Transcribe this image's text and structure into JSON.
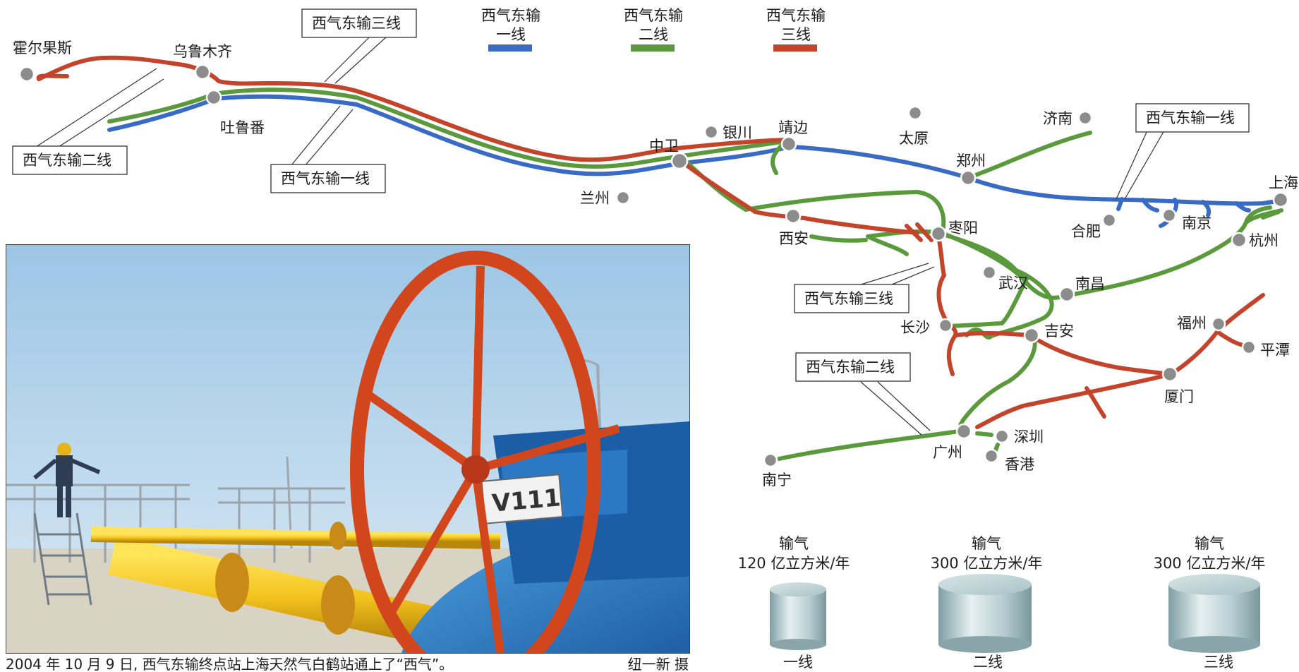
{
  "legend": [
    {
      "line1": "西气东输",
      "line2": "一线",
      "color": "#3a6bc4"
    },
    {
      "line1": "西气东输",
      "line2": "二线",
      "color": "#5a9a3c"
    },
    {
      "line1": "西气东输",
      "line2": "三线",
      "color": "#c4432b"
    }
  ],
  "cities": {
    "huoerguosi": "霍尔果斯",
    "wulumuqi": "乌鲁木齐",
    "tulufan": "吐鲁番",
    "zhongwei": "中卫",
    "yinchuan": "银川",
    "jingbian": "靖边",
    "lanzhou": "兰州",
    "taiyuan": "太原",
    "jinan": "济南",
    "zhengzhou": "郑州",
    "shanghai": "上海",
    "hefei": "合肥",
    "nanjing": "南京",
    "hangzhou": "杭州",
    "xian": "西安",
    "zaoyang": "枣阳",
    "wuhan": "武汉",
    "nanchang": "南昌",
    "changsha": "长沙",
    "jian": "吉安",
    "fuzhou": "福州",
    "pingtan": "平潭",
    "xiamen": "厦门",
    "guangzhou": "广州",
    "shenzhen": "深圳",
    "xianggang": "香港",
    "nanning": "南宁"
  },
  "callouts": {
    "line3_top": "西气东输三线",
    "line2_left": "西气东输二线",
    "line1_mid": "西气东输一线",
    "line1_east": "西气东输一线",
    "line3_mid": "西气东输三线",
    "line2_south": "西气东输二线"
  },
  "capacity": [
    {
      "label": "输气",
      "amount": "120 亿立方米/年",
      "name": "一线",
      "value": 120
    },
    {
      "label": "输气",
      "amount": "300 亿立方米/年",
      "name": "二线",
      "value": 300
    },
    {
      "label": "输气",
      "amount": "300 亿立方米/年",
      "name": "三线",
      "value": 300
    }
  ],
  "photo": {
    "caption": "2004 年 10 月 9 日, 西气东输终点站上海天然气白鹤站通上了“西气”。",
    "credit": "纽一新 摄",
    "valve_tag": "V111"
  }
}
